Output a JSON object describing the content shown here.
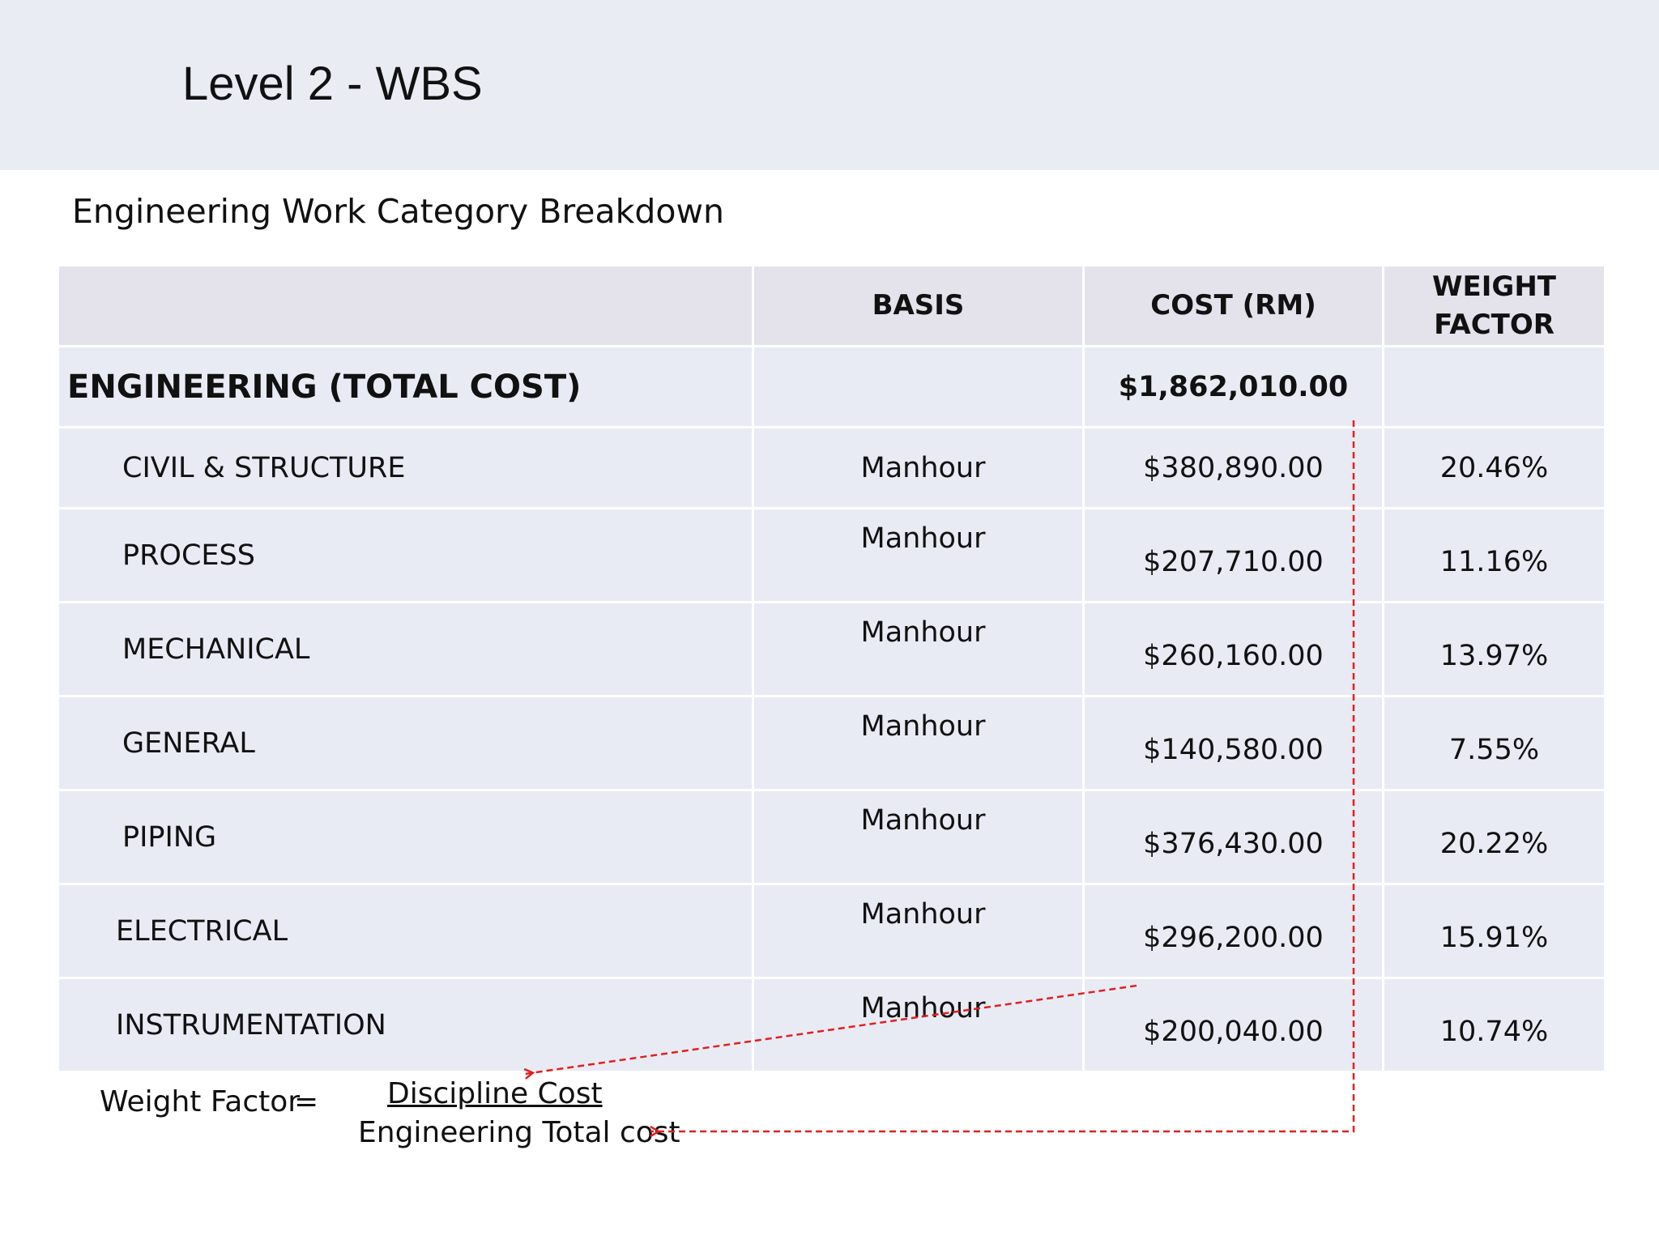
{
  "slide": {
    "title": "Level 2 - WBS",
    "subtitle": "Engineering Work Category Breakdown"
  },
  "table": {
    "headers": {
      "category": "",
      "basis": "BASIS",
      "cost": "COST (RM)",
      "weight_line1": "WEIGHT",
      "weight_line2": "FACTOR"
    },
    "total": {
      "label": "ENGINEERING (TOTAL COST)",
      "basis": "",
      "cost": "$1,862,010.00",
      "weight": ""
    },
    "rows": [
      {
        "category": "CIVIL & STRUCTURE",
        "basis": "Manhour",
        "cost": "$380,890.00",
        "weight": "20.46%"
      },
      {
        "category": "PROCESS",
        "basis": "Manhour",
        "cost": "$207,710.00",
        "weight": "11.16%"
      },
      {
        "category": "MECHANICAL",
        "basis": "Manhour",
        "cost": "$260,160.00",
        "weight": "13.97%"
      },
      {
        "category": "GENERAL",
        "basis": "Manhour",
        "cost": "$140,580.00",
        "weight": "7.55%"
      },
      {
        "category": "PIPING",
        "basis": "Manhour",
        "cost": "$376,430.00",
        "weight": "20.22%"
      },
      {
        "category": "ELECTRICAL",
        "basis": "Manhour",
        "cost": "$296,200.00",
        "weight": "15.91%"
      },
      {
        "category": "INSTRUMENTATION",
        "basis": "Manhour",
        "cost": "$200,040.00",
        "weight": "10.74%"
      }
    ]
  },
  "formula": {
    "label": "Weight Factor",
    "equals": "=",
    "numerator": "Discipline Cost",
    "denominator": "Engineering Total cost"
  },
  "colors": {
    "title_band": "#e9ecf3",
    "header_fill": "#e4e3ec",
    "row_fill": "#e9ebf4",
    "arrow": "#e02020"
  }
}
